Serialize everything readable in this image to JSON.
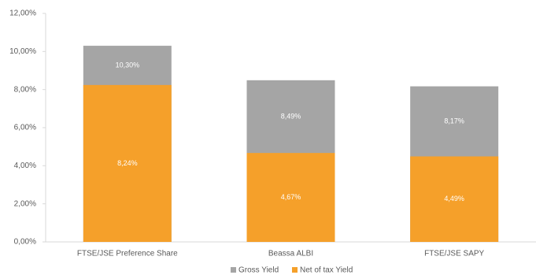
{
  "chart_data": {
    "type": "bar",
    "overlap": true,
    "categories": [
      "FTSE/JSE Preference Share",
      "Beassa ALBI",
      "FTSE/JSE SAPY"
    ],
    "series": [
      {
        "name": "Gross Yield",
        "color": "#a5a5a5",
        "values": [
          10.3,
          8.49,
          8.17
        ],
        "value_labels": [
          "10,30%",
          "8,49%",
          "8,17%"
        ]
      },
      {
        "name": "Net of tax Yield",
        "color": "#f5a02a",
        "values": [
          8.24,
          4.67,
          4.49
        ],
        "value_labels": [
          "8,24%",
          "4,67%",
          "4,49%"
        ]
      }
    ],
    "ylim": [
      0,
      12
    ],
    "yticks": [
      {
        "value": 0,
        "label": "0,00%"
      },
      {
        "value": 2,
        "label": "2,00%"
      },
      {
        "value": 4,
        "label": "4,00%"
      },
      {
        "value": 6,
        "label": "6,00%"
      },
      {
        "value": 8,
        "label": "8,00%"
      },
      {
        "value": 10,
        "label": "10,00%"
      },
      {
        "value": 12,
        "label": "12,00%"
      }
    ],
    "grid": false,
    "legend": "bottom"
  }
}
